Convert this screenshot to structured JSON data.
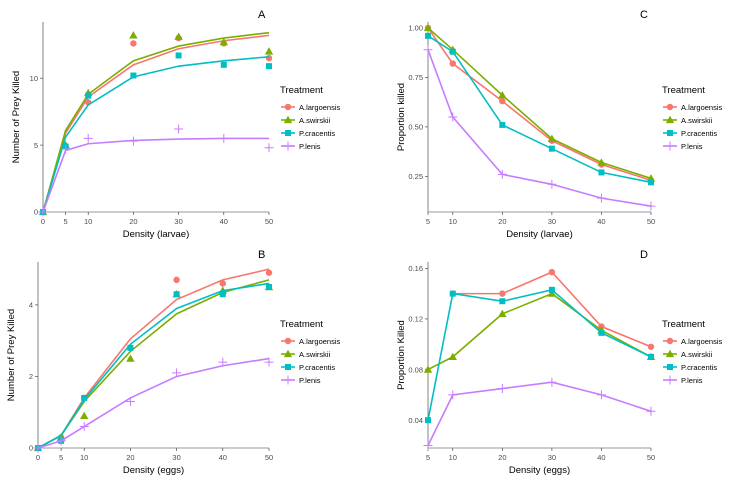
{
  "colors": {
    "A.largoensis": "#F8766D",
    "A.swirskii": "#7CAE00",
    "P.cracentis": "#00BFC4",
    "P.lenis": "#C77CFF"
  },
  "chart_data": [
    {
      "panel": "A",
      "type": "scatter",
      "xlabel": "Density (larvae)",
      "ylabel": "Number of Prey Killed",
      "xlim": [
        0,
        50
      ],
      "ylim": [
        0,
        14.2
      ],
      "xticks": [
        0,
        5,
        10,
        20,
        30,
        40,
        50
      ],
      "yticks": [
        0,
        5,
        10
      ],
      "legend_title": "Treatment",
      "legend_position": "right",
      "series": [
        {
          "name": "A.largoensis",
          "marker": "circle",
          "points": [
            [
              0,
              0
            ],
            [
              5,
              4.9
            ],
            [
              10,
              8.2
            ],
            [
              20,
              12.6
            ],
            [
              30,
              13.0
            ],
            [
              40,
              12.6
            ],
            [
              50,
              11.5
            ]
          ],
          "line": [
            [
              0,
              0
            ],
            [
              5,
              5.9
            ],
            [
              10,
              8.6
            ],
            [
              20,
              11.0
            ],
            [
              30,
              12.2
            ],
            [
              40,
              12.8
            ],
            [
              50,
              13.2
            ]
          ]
        },
        {
          "name": "A.swirskii",
          "marker": "triangle",
          "points": [
            [
              0,
              0
            ],
            [
              5,
              5.0
            ],
            [
              10,
              8.9
            ],
            [
              20,
              13.2
            ],
            [
              30,
              13.1
            ],
            [
              40,
              12.7
            ],
            [
              50,
              12.0
            ]
          ],
          "line": [
            [
              0,
              0
            ],
            [
              5,
              6.1
            ],
            [
              10,
              8.8
            ],
            [
              20,
              11.3
            ],
            [
              30,
              12.4
            ],
            [
              40,
              13.0
            ],
            [
              50,
              13.4
            ]
          ]
        },
        {
          "name": "P.cracentis",
          "marker": "square",
          "points": [
            [
              0,
              0
            ],
            [
              5,
              4.9
            ],
            [
              10,
              8.7
            ],
            [
              20,
              10.2
            ],
            [
              30,
              11.7
            ],
            [
              40,
              11.0
            ],
            [
              50,
              10.9
            ]
          ],
          "line": [
            [
              0,
              0
            ],
            [
              5,
              5.6
            ],
            [
              10,
              8.0
            ],
            [
              20,
              10.1
            ],
            [
              30,
              10.9
            ],
            [
              40,
              11.3
            ],
            [
              50,
              11.6
            ]
          ]
        },
        {
          "name": "P.lenis",
          "marker": "plus",
          "points": [
            [
              0,
              0
            ],
            [
              5,
              4.7
            ],
            [
              10,
              5.5
            ],
            [
              20,
              5.3
            ],
            [
              30,
              6.2
            ],
            [
              40,
              5.5
            ],
            [
              50,
              4.8
            ]
          ],
          "line": [
            [
              0,
              0
            ],
            [
              5,
              4.6
            ],
            [
              10,
              5.1
            ],
            [
              20,
              5.35
            ],
            [
              30,
              5.45
            ],
            [
              40,
              5.5
            ],
            [
              50,
              5.5
            ]
          ]
        }
      ]
    },
    {
      "panel": "B",
      "type": "scatter",
      "xlabel": "Density (eggs)",
      "ylabel": "Number of Prey Killed",
      "xlim": [
        0,
        50
      ],
      "ylim": [
        0,
        5.2
      ],
      "xticks": [
        0,
        5,
        10,
        20,
        30,
        40,
        50
      ],
      "yticks": [
        0,
        2,
        4
      ],
      "legend_title": "Treatment",
      "legend_position": "right",
      "series": [
        {
          "name": "A.largoensis",
          "marker": "circle",
          "points": [
            [
              0,
              0
            ],
            [
              5,
              0.3
            ],
            [
              10,
              1.4
            ],
            [
              20,
              2.8
            ],
            [
              30,
              4.7
            ],
            [
              40,
              4.6
            ],
            [
              50,
              4.9
            ]
          ],
          "line": [
            [
              0,
              0
            ],
            [
              5,
              0.35
            ],
            [
              10,
              1.4
            ],
            [
              20,
              3.05
            ],
            [
              30,
              4.15
            ],
            [
              40,
              4.7
            ],
            [
              50,
              5.0
            ]
          ]
        },
        {
          "name": "A.swirskii",
          "marker": "triangle",
          "points": [
            [
              0,
              0
            ],
            [
              5,
              0.3
            ],
            [
              10,
              0.9
            ],
            [
              20,
              2.5
            ],
            [
              30,
              4.3
            ],
            [
              40,
              4.4
            ],
            [
              50,
              4.5
            ]
          ],
          "line": [
            [
              0,
              0
            ],
            [
              5,
              0.35
            ],
            [
              10,
              1.3
            ],
            [
              20,
              2.7
            ],
            [
              30,
              3.75
            ],
            [
              40,
              4.35
            ],
            [
              50,
              4.7
            ]
          ]
        },
        {
          "name": "P.cracentis",
          "marker": "square",
          "points": [
            [
              0,
              0
            ],
            [
              5,
              0.2
            ],
            [
              10,
              1.4
            ],
            [
              20,
              2.8
            ],
            [
              30,
              4.3
            ],
            [
              40,
              4.3
            ],
            [
              50,
              4.5
            ]
          ],
          "line": [
            [
              0,
              0
            ],
            [
              5,
              0.35
            ],
            [
              10,
              1.35
            ],
            [
              20,
              2.9
            ],
            [
              30,
              3.9
            ],
            [
              40,
              4.4
            ],
            [
              50,
              4.6
            ]
          ]
        },
        {
          "name": "P.lenis",
          "marker": "plus",
          "points": [
            [
              0,
              0
            ],
            [
              5,
              0.2
            ],
            [
              10,
              0.6
            ],
            [
              20,
              1.3
            ],
            [
              30,
              2.1
            ],
            [
              40,
              2.4
            ],
            [
              50,
              2.4
            ]
          ],
          "line": [
            [
              0,
              0
            ],
            [
              5,
              0.2
            ],
            [
              10,
              0.6
            ],
            [
              20,
              1.4
            ],
            [
              30,
              2.0
            ],
            [
              40,
              2.3
            ],
            [
              50,
              2.5
            ]
          ]
        }
      ]
    },
    {
      "panel": "C",
      "type": "line",
      "xlabel": "Density (larvae)",
      "ylabel": "Proportion killed",
      "xlim": [
        5,
        50
      ],
      "ylim": [
        0.07,
        1.03
      ],
      "xticks": [
        5,
        10,
        20,
        30,
        40,
        50
      ],
      "yticks": [
        0.25,
        0.5,
        0.75,
        1.0
      ],
      "ytick_labels": [
        "0.25",
        "0.50",
        "0.75",
        "1.00"
      ],
      "legend_title": "Treatment",
      "legend_position": "right",
      "series": [
        {
          "name": "A.largoensis",
          "marker": "circle",
          "points": [
            [
              5,
              1.0
            ],
            [
              10,
              0.82
            ],
            [
              20,
              0.63
            ],
            [
              30,
              0.43
            ],
            [
              40,
              0.31
            ],
            [
              50,
              0.23
            ]
          ]
        },
        {
          "name": "A.swirskii",
          "marker": "triangle",
          "points": [
            [
              5,
              1.0
            ],
            [
              10,
              0.89
            ],
            [
              20,
              0.66
            ],
            [
              30,
              0.44
            ],
            [
              40,
              0.32
            ],
            [
              50,
              0.24
            ]
          ]
        },
        {
          "name": "P.cracentis",
          "marker": "square",
          "points": [
            [
              5,
              0.96
            ],
            [
              10,
              0.88
            ],
            [
              20,
              0.51
            ],
            [
              30,
              0.39
            ],
            [
              40,
              0.27
            ],
            [
              50,
              0.22
            ]
          ]
        },
        {
          "name": "P.lenis",
          "marker": "plus",
          "points": [
            [
              5,
              0.89
            ],
            [
              10,
              0.55
            ],
            [
              20,
              0.26
            ],
            [
              30,
              0.21
            ],
            [
              40,
              0.14
            ],
            [
              50,
              0.1
            ]
          ]
        }
      ]
    },
    {
      "panel": "D",
      "type": "line",
      "xlabel": "Density (eggs)",
      "ylabel": "Proportion Killed",
      "xlim": [
        5,
        50
      ],
      "ylim": [
        0.018,
        0.165
      ],
      "xticks": [
        5,
        10,
        20,
        30,
        40,
        50
      ],
      "yticks": [
        0.04,
        0.08,
        0.12,
        0.16
      ],
      "ytick_labels": [
        "0.04",
        "0.08",
        "0.12",
        "0.16"
      ],
      "legend_title": "Treatment",
      "legend_position": "right",
      "series": [
        {
          "name": "A.largoensis",
          "marker": "circle",
          "points": [
            [
              10,
              0.14
            ],
            [
              20,
              0.14
            ],
            [
              30,
              0.157
            ],
            [
              40,
              0.114
            ],
            [
              50,
              0.098
            ]
          ]
        },
        {
          "name": "A.swirskii",
          "marker": "triangle",
          "points": [
            [
              5,
              0.08
            ],
            [
              10,
              0.09
            ],
            [
              20,
              0.124
            ],
            [
              30,
              0.14
            ],
            [
              40,
              0.111
            ],
            [
              50,
              0.09
            ]
          ]
        },
        {
          "name": "P.cracentis",
          "marker": "square",
          "points": [
            [
              5,
              0.04
            ],
            [
              10,
              0.14
            ],
            [
              20,
              0.134
            ],
            [
              30,
              0.143
            ],
            [
              40,
              0.109
            ],
            [
              50,
              0.09
            ]
          ]
        },
        {
          "name": "P.lenis",
          "marker": "plus",
          "points": [
            [
              5,
              0.02
            ],
            [
              10,
              0.06
            ],
            [
              20,
              0.065
            ],
            [
              30,
              0.07
            ],
            [
              40,
              0.06
            ],
            [
              50,
              0.047
            ]
          ]
        }
      ]
    }
  ]
}
